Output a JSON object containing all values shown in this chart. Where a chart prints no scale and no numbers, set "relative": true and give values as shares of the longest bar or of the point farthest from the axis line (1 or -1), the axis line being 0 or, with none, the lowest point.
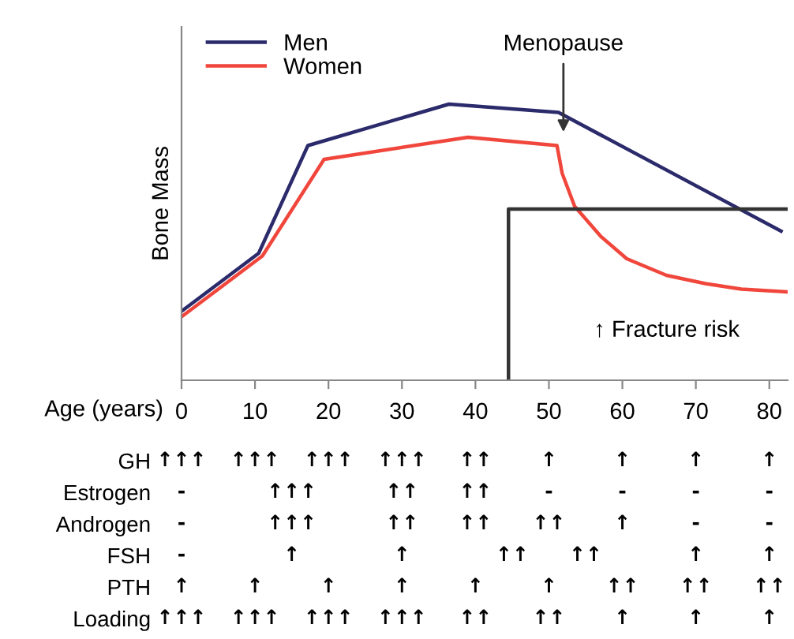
{
  "chart_data": [
    {
      "type": "line",
      "relative": true,
      "xlabel": "Age (years)",
      "ylabel": "Bone Mass",
      "xlim": [
        0,
        82.5
      ],
      "xticks": [
        0,
        10,
        20,
        30,
        40,
        50,
        60,
        70,
        80
      ],
      "legend": "top left",
      "grid": false,
      "series": [
        {
          "name": "Men",
          "color": "#2b2a6b",
          "x": [
            0,
            10.5,
            17.2,
            36.4,
            51.3,
            81.6
          ],
          "values": [
            0.25,
            0.46,
            0.85,
            1.0,
            0.97,
            0.54
          ]
        },
        {
          "name": "Women",
          "color": "#f0463c",
          "x": [
            0,
            11,
            19.4,
            39,
            51.1,
            51.8,
            53.5,
            57.1,
            60.6,
            66,
            71.3,
            76.2,
            82.5
          ],
          "values": [
            0.23,
            0.45,
            0.8,
            0.88,
            0.85,
            0.75,
            0.63,
            0.52,
            0.44,
            0.38,
            0.35,
            0.33,
            0.32
          ]
        },
        {
          "color": "#333333",
          "x": [
            44.5,
            44.5,
            82.5
          ],
          "values": [
            0,
            0.62,
            0.62
          ]
        }
      ],
      "annotations": [
        "Menopause",
        "↑ Fracture risk"
      ]
    },
    {
      "type": "heatmap",
      "tick_labels": "y",
      "categories": [
        "0",
        null,
        "10",
        null,
        "20",
        null,
        "30",
        null,
        "40",
        null,
        "50",
        null,
        "60",
        null,
        "70",
        null,
        "80"
      ],
      "y_categories": [
        "GH",
        "Estrogen",
        "Androgen",
        "FSH",
        "PTH",
        "Loading"
      ],
      "cells": [
        [
          null,
          null,
          null,
          null,
          null,
          null,
          null,
          null,
          null,
          null,
          null,
          null,
          null,
          null,
          null,
          null,
          null
        ],
        [
          null,
          null,
          null,
          null,
          null,
          null,
          null,
          null,
          null,
          null,
          null,
          null,
          null,
          null,
          null,
          null,
          null
        ],
        [
          null,
          null,
          null,
          null,
          null,
          null,
          null,
          null,
          null,
          null,
          null,
          null,
          null,
          null,
          null,
          null,
          null
        ],
        [
          null,
          null,
          null,
          null,
          null,
          null,
          null,
          null,
          null,
          null,
          null,
          null,
          null,
          null,
          null,
          null,
          null
        ],
        [
          null,
          null,
          null,
          null,
          null,
          null,
          null,
          null,
          null,
          null,
          null,
          null,
          null,
          null,
          null,
          null,
          null
        ],
        [
          null,
          null,
          null,
          null,
          null,
          null,
          null,
          null,
          null,
          null,
          null,
          null,
          null,
          null,
          null,
          null,
          null
        ]
      ],
      "cell_labels": [
        [
          "↑↑↑",
          null,
          "↑↑↑",
          null,
          "↑↑↑",
          null,
          "↑↑↑",
          null,
          "↑↑",
          null,
          "↑",
          null,
          "↑",
          null,
          "↑",
          null,
          "↑"
        ],
        [
          "-",
          null,
          null,
          "↑↑↑",
          null,
          null,
          "↑↑",
          null,
          "↑↑",
          null,
          "-",
          null,
          "-",
          null,
          "-",
          null,
          "-"
        ],
        [
          "-",
          null,
          null,
          "↑↑↑",
          null,
          null,
          "↑↑",
          null,
          "↑↑",
          null,
          "↑↑",
          null,
          "↑",
          null,
          "-",
          null,
          "-"
        ],
        [
          "-",
          null,
          null,
          "↑",
          null,
          null,
          "↑",
          null,
          null,
          "↑↑",
          null,
          "↑↑",
          null,
          null,
          "↑",
          null,
          "↑"
        ],
        [
          "↑",
          null,
          "↑",
          null,
          "↑",
          null,
          "↑",
          null,
          "↑",
          null,
          "↑",
          null,
          "↑↑",
          null,
          "↑↑",
          null,
          "↑↑"
        ],
        [
          "↑↑↑",
          null,
          "↑↑↑",
          null,
          "↑↑↑",
          null,
          "↑↑↑",
          null,
          "↑↑",
          null,
          "↑↑",
          null,
          "↑",
          null,
          "↑",
          null,
          "↑"
        ]
      ]
    }
  ]
}
